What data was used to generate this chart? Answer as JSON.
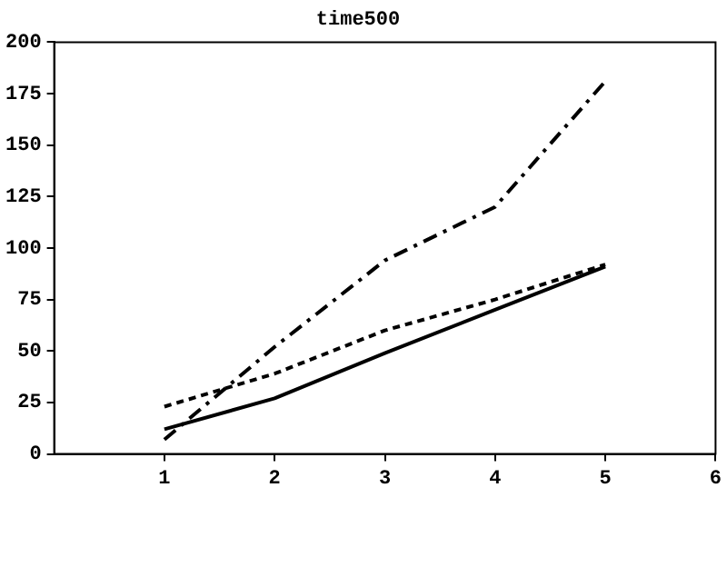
{
  "chart_data": {
    "type": "line",
    "title": "time500",
    "x": [
      1,
      2,
      3,
      4,
      5
    ],
    "series": [
      {
        "color": "#000000",
        "line_style": "solid",
        "values": [
          12,
          27,
          49,
          70,
          91
        ]
      },
      {
        "color": "#000000",
        "line_style": "dashed",
        "values": [
          23,
          39,
          60,
          75,
          92
        ]
      },
      {
        "color": "#000000",
        "line_style": "dashdot",
        "values": [
          7,
          52,
          94,
          120,
          181
        ]
      }
    ],
    "xlim": [
      0,
      6
    ],
    "xticks": [
      1,
      2,
      3,
      4,
      5,
      6
    ],
    "ylim": [
      0,
      200
    ],
    "yticks": [
      0,
      25,
      50,
      75,
      100,
      125,
      150,
      175,
      200
    ],
    "grid": false,
    "legend": false,
    "marker": "none"
  }
}
